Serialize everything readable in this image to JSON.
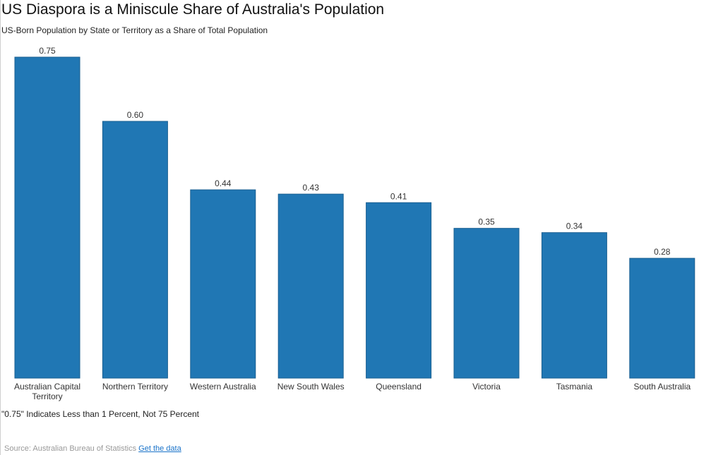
{
  "title": "US Diaspora is a Miniscule Share of Australia's Population",
  "subtitle": "US-Born Population by State or Territory as a Share of Total Population",
  "note": "\"0.75\" Indicates Less than 1 Percent, Not 75 Percent",
  "source": {
    "text": "Source: Australian Bureau of Statistics",
    "link_label": "Get the data"
  },
  "colors": {
    "bar": "#2077b4",
    "bar_edge": "#1a5f91"
  },
  "chart_data": {
    "type": "bar",
    "categories": [
      "Australian Capital Territory",
      "Northern Territory",
      "Western Australia",
      "New South Wales",
      "Queensland",
      "Victoria",
      "Tasmania",
      "South Australia"
    ],
    "values": [
      0.75,
      0.6,
      0.44,
      0.43,
      0.41,
      0.35,
      0.34,
      0.28
    ],
    "value_labels": [
      "0.75",
      "0.60",
      "0.44",
      "0.43",
      "0.41",
      "0.35",
      "0.34",
      "0.28"
    ],
    "title": "US Diaspora is a Miniscule Share of Australia's Population",
    "subtitle": "US-Born Population by State or Territory as a Share of Total Population",
    "xlabel": "",
    "ylabel": "",
    "ylim": [
      0,
      0.75
    ],
    "grid": false,
    "legend": "none"
  }
}
